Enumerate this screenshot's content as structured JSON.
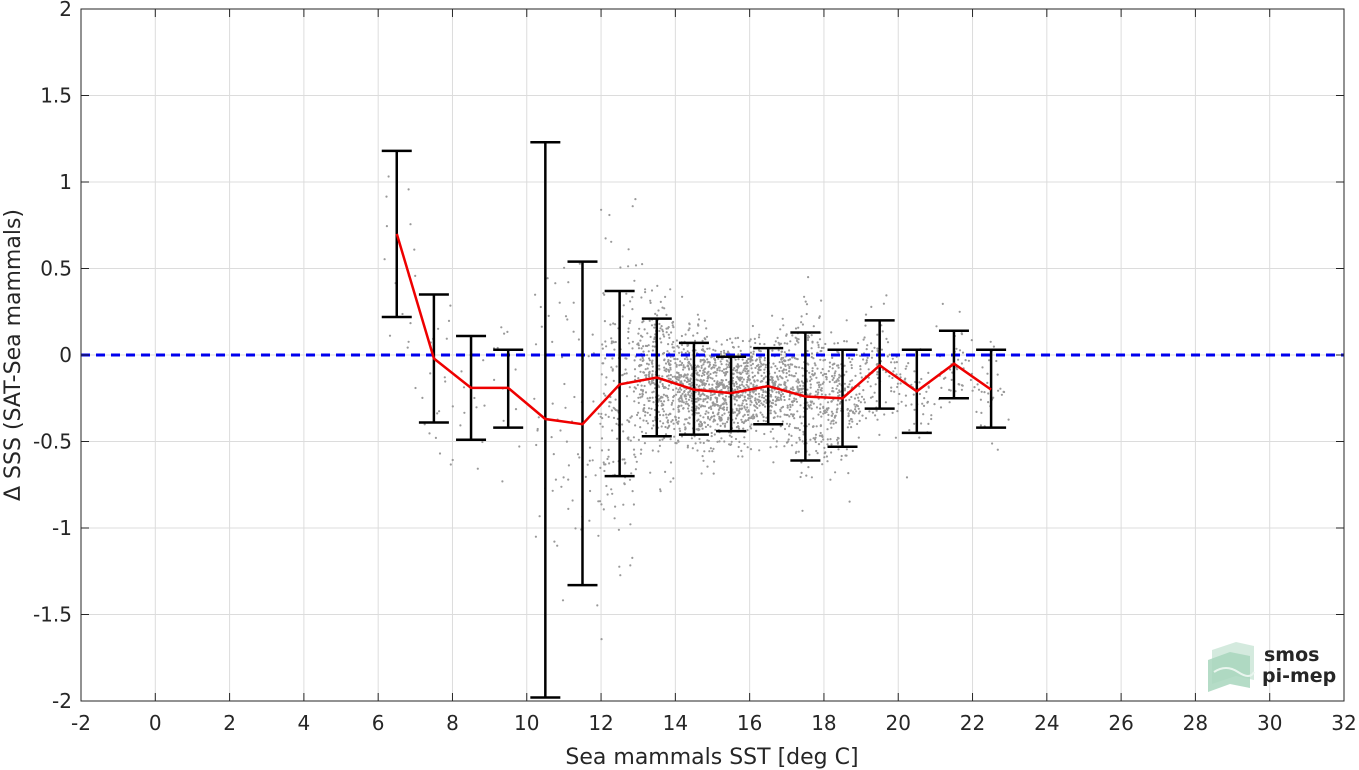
{
  "chart_data": {
    "type": "scatter",
    "title": "",
    "xlabel": "Sea mammals SST [deg C]",
    "ylabel": "Δ SSS (SAT-Sea mammals)",
    "xlim": [
      -2,
      32
    ],
    "ylim": [
      -2,
      2
    ],
    "xticks": [
      -2,
      0,
      2,
      4,
      6,
      8,
      10,
      12,
      14,
      16,
      18,
      20,
      22,
      24,
      26,
      28,
      30,
      32
    ],
    "xtick_labels": [
      "-2",
      "0",
      "2",
      "4",
      "6",
      "8",
      "10",
      "12",
      "14",
      "16",
      "18",
      "20",
      "22",
      "24",
      "26",
      "28",
      "30",
      "32"
    ],
    "yticks": [
      -2,
      -1.5,
      -1,
      -0.5,
      0,
      0.5,
      1,
      1.5,
      2
    ],
    "ytick_labels": [
      "-2",
      "-1.5",
      "-1",
      "-0.5",
      "0",
      "0.5",
      "1",
      "1.5",
      "2"
    ],
    "grid": true,
    "reference_line": {
      "y": 0,
      "style": "dashed",
      "color": "#0000ee"
    },
    "scatter_color": "#999999",
    "mean_line_color": "#ee0000",
    "errorbar_color": "#000000",
    "binned_stats": [
      {
        "x": 6.5,
        "mean": 0.7,
        "low": 0.22,
        "high": 1.18
      },
      {
        "x": 7.5,
        "mean": -0.02,
        "low": -0.39,
        "high": 0.35
      },
      {
        "x": 8.5,
        "mean": -0.19,
        "low": -0.49,
        "high": 0.11
      },
      {
        "x": 9.5,
        "mean": -0.19,
        "low": -0.42,
        "high": 0.03
      },
      {
        "x": 10.5,
        "mean": -0.37,
        "low": -1.98,
        "high": 1.23
      },
      {
        "x": 11.5,
        "mean": -0.4,
        "low": -1.33,
        "high": 0.54
      },
      {
        "x": 12.5,
        "mean": -0.17,
        "low": -0.7,
        "high": 0.37
      },
      {
        "x": 13.5,
        "mean": -0.13,
        "low": -0.47,
        "high": 0.21
      },
      {
        "x": 14.5,
        "mean": -0.2,
        "low": -0.46,
        "high": 0.07
      },
      {
        "x": 15.5,
        "mean": -0.22,
        "low": -0.44,
        "high": -0.01
      },
      {
        "x": 16.5,
        "mean": -0.18,
        "low": -0.4,
        "high": 0.04
      },
      {
        "x": 17.5,
        "mean": -0.24,
        "low": -0.61,
        "high": 0.13
      },
      {
        "x": 18.5,
        "mean": -0.25,
        "low": -0.53,
        "high": 0.03
      },
      {
        "x": 19.5,
        "mean": -0.06,
        "low": -0.31,
        "high": 0.2
      },
      {
        "x": 20.5,
        "mean": -0.21,
        "low": -0.45,
        "high": 0.03
      },
      {
        "x": 21.5,
        "mean": -0.05,
        "low": -0.25,
        "high": 0.14
      },
      {
        "x": 22.5,
        "mean": -0.2,
        "low": -0.42,
        "high": 0.03
      }
    ],
    "scatter_clusters": [
      {
        "x_min": 6.0,
        "x_max": 7.0,
        "y_mean": 0.6,
        "y_sd": 0.35,
        "count": 15
      },
      {
        "x_min": 7.0,
        "x_max": 8.0,
        "y_mean": -0.1,
        "y_sd": 0.3,
        "count": 18
      },
      {
        "x_min": 8.0,
        "x_max": 9.0,
        "y_mean": -0.2,
        "y_sd": 0.25,
        "count": 14
      },
      {
        "x_min": 9.0,
        "x_max": 10.0,
        "y_mean": -0.2,
        "y_sd": 0.22,
        "count": 12
      },
      {
        "x_min": 10.0,
        "x_max": 11.0,
        "y_mean": -0.4,
        "y_sd": 0.45,
        "count": 30
      },
      {
        "x_min": 11.0,
        "x_max": 12.0,
        "y_mean": -0.45,
        "y_sd": 0.45,
        "count": 45
      },
      {
        "x_min": 12.0,
        "x_max": 13.0,
        "y_mean": -0.25,
        "y_sd": 0.4,
        "count": 170
      },
      {
        "x_min": 13.0,
        "x_max": 14.0,
        "y_mean": -0.15,
        "y_sd": 0.22,
        "count": 330
      },
      {
        "x_min": 14.0,
        "x_max": 15.0,
        "y_mean": -0.2,
        "y_sd": 0.17,
        "count": 440
      },
      {
        "x_min": 15.0,
        "x_max": 16.0,
        "y_mean": -0.22,
        "y_sd": 0.14,
        "count": 420
      },
      {
        "x_min": 16.0,
        "x_max": 17.0,
        "y_mean": -0.18,
        "y_sd": 0.15,
        "count": 330
      },
      {
        "x_min": 17.0,
        "x_max": 18.0,
        "y_mean": -0.24,
        "y_sd": 0.22,
        "count": 290
      },
      {
        "x_min": 18.0,
        "x_max": 19.0,
        "y_mean": -0.25,
        "y_sd": 0.18,
        "count": 200
      },
      {
        "x_min": 19.0,
        "x_max": 20.0,
        "y_mean": -0.08,
        "y_sd": 0.15,
        "count": 90
      },
      {
        "x_min": 20.0,
        "x_max": 21.0,
        "y_mean": -0.2,
        "y_sd": 0.15,
        "count": 50
      },
      {
        "x_min": 21.0,
        "x_max": 22.0,
        "y_mean": -0.06,
        "y_sd": 0.13,
        "count": 45
      },
      {
        "x_min": 22.0,
        "x_max": 23.0,
        "y_mean": -0.2,
        "y_sd": 0.15,
        "count": 35
      }
    ],
    "logo": {
      "line1": "smos",
      "line2": "pi-mep",
      "color": "#6fb894"
    }
  }
}
